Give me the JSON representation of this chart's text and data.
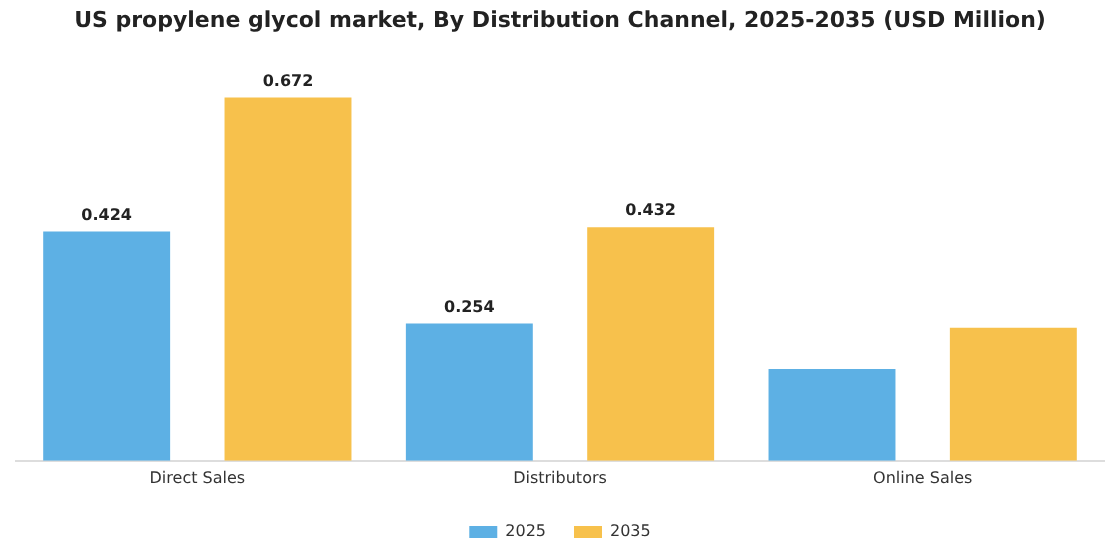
{
  "chart_data": {
    "type": "bar",
    "title": "US propylene glycol market, By Distribution Channel, 2025-2035 (USD Million)",
    "categories": [
      "Direct Sales",
      "Distributors",
      "Online Sales"
    ],
    "series": [
      {
        "name": "2025",
        "color": "#5db0e4",
        "values": [
          0.424,
          0.254,
          0.17
        ],
        "value_labels": [
          "0.424",
          "0.254",
          null
        ]
      },
      {
        "name": "2035",
        "color": "#f7c14c",
        "values": [
          0.672,
          0.432,
          0.246
        ],
        "value_labels": [
          "0.672",
          "0.432",
          null
        ]
      }
    ],
    "grid": false,
    "legend": "bottom",
    "tick_labels": "x"
  }
}
